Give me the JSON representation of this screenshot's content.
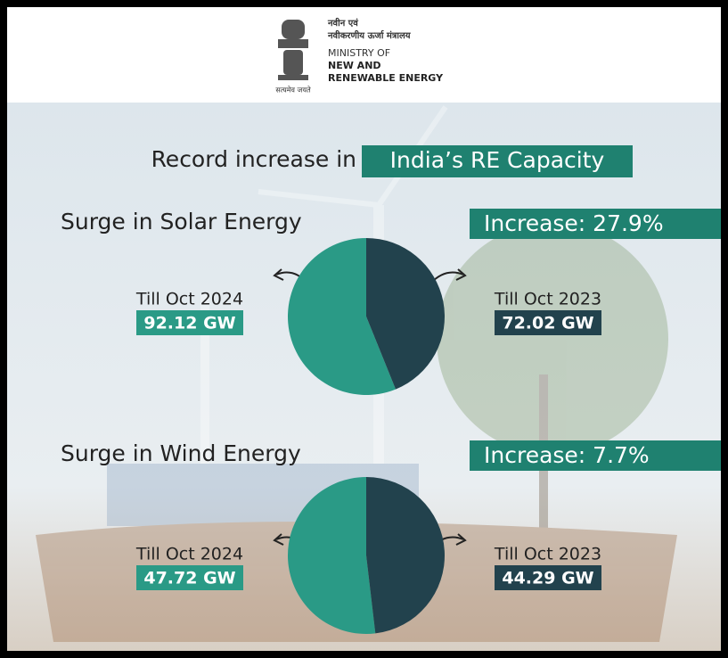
{
  "header": {
    "ministry_lines": [
      "नवीन एवं",
      "नवीकरणीय ऊर्जा मंत्रालय",
      "MINISTRY OF",
      "NEW AND",
      "RENEWABLE ENERGY"
    ],
    "motto": "सत्यमेव जयते"
  },
  "headline": {
    "text": "Record increase in",
    "highlight": "India’s RE Capacity"
  },
  "chart_data": [
    {
      "type": "pie",
      "title": "Surge in Solar Energy",
      "annotation": "Increase: 27.9%",
      "categories": [
        "Till Oct 2024",
        "Till Oct 2023"
      ],
      "values": [
        92.12,
        72.02
      ],
      "value_labels": [
        "92.12 GW",
        "72.02 GW"
      ],
      "colors": [
        "#2a9a86",
        "#22424d"
      ]
    },
    {
      "type": "pie",
      "title": "Surge in Wind Energy",
      "annotation": "Increase: 7.7%",
      "categories": [
        "Till Oct 2024",
        "Till Oct 2023"
      ],
      "values": [
        47.72,
        44.29
      ],
      "value_labels": [
        "47.72 GW",
        "44.29 GW"
      ],
      "colors": [
        "#2a9a86",
        "#22424d"
      ]
    }
  ]
}
